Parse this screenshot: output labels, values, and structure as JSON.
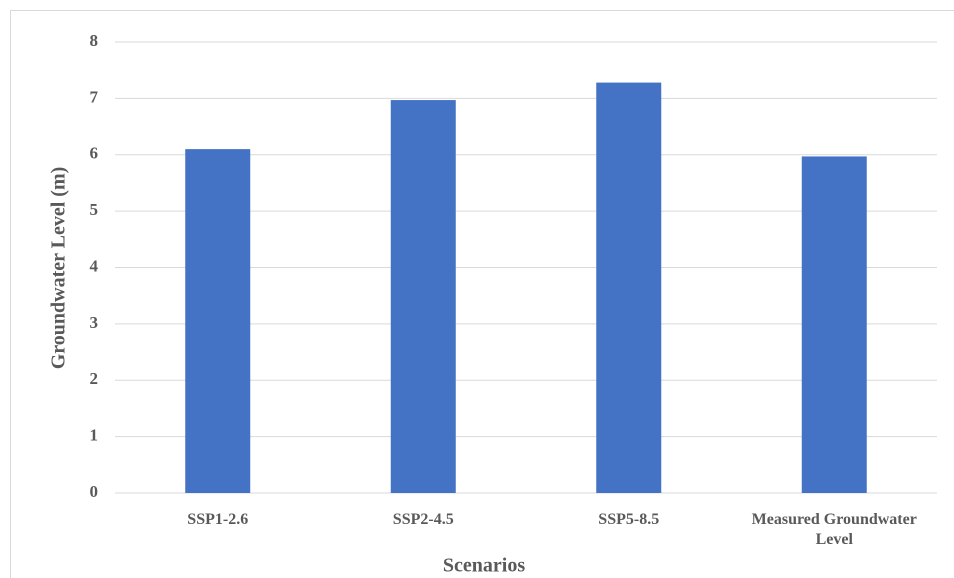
{
  "chart_data": {
    "type": "bar",
    "x_label": "Scenarios",
    "y_label": "Groundwater Level (m)",
    "categories": [
      "SSP1-2.6",
      "SSP2-4.5",
      "SSP5-8.5",
      "Measured Groundwater Level"
    ],
    "values": [
      6.1,
      6.97,
      7.28,
      5.97
    ],
    "color": "#4472c4",
    "ylim": [
      0,
      8
    ],
    "yticks": [
      0,
      1,
      2,
      3,
      4,
      5,
      6,
      7,
      8
    ],
    "grid": true
  }
}
